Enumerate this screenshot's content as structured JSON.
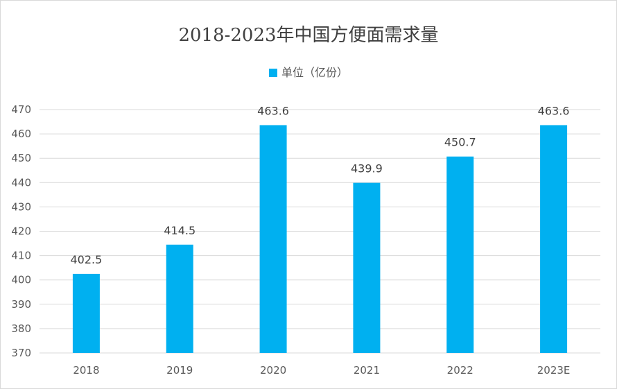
{
  "chart_data": {
    "type": "bar",
    "title": "2018-2023年中国方便面需求量",
    "categories": [
      "2018",
      "2019",
      "2020",
      "2021",
      "2022",
      "2023E"
    ],
    "series": [
      {
        "name": "单位（亿份）",
        "values": [
          402.5,
          414.5,
          463.6,
          439.9,
          450.7,
          463.6
        ]
      }
    ],
    "data_labels": [
      "402.5",
      "414.5",
      "463.6",
      "439.9",
      "450.7",
      "463.6"
    ],
    "xlabel": "",
    "ylabel": "",
    "ylim": [
      370,
      470
    ],
    "yticks": [
      370,
      380,
      390,
      400,
      410,
      420,
      430,
      440,
      450,
      460,
      470
    ],
    "grid": true,
    "legend": "top",
    "colors": {
      "bar": "#00B0F0",
      "grid": "#d9d9d9",
      "text": "#595959"
    }
  }
}
